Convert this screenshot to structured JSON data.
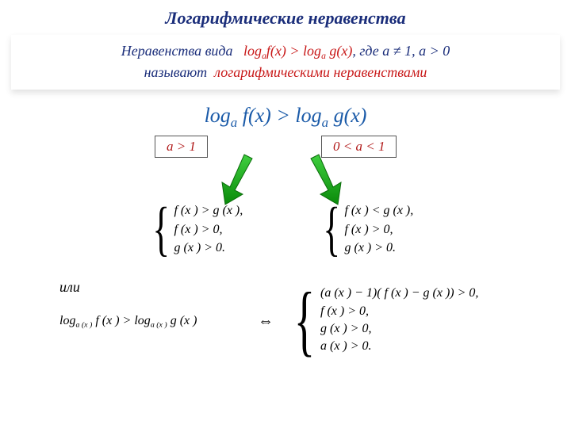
{
  "colors": {
    "title": "#1a2d7a",
    "def_text": "#1a2d7a",
    "red": "#c81818",
    "main_ineq": "#1a5aa8",
    "cond_text": "#b01818",
    "system_text": "#000000",
    "arrow_fill": "#1fa01f",
    "arrow_stroke": "#0a6b0a"
  },
  "title": {
    "text": "Логарифмические неравенства",
    "fontsize": 22
  },
  "definition": {
    "prefix": "Неравенства вида",
    "formula_left": "log",
    "formula_sub": "a",
    "fx": "f(x)",
    "gt": ">",
    "gx": "g(x)",
    "where": ", где a ≠ 1, a > 0",
    "line2": "называют",
    "line2_red": "логарифмическими  неравенствами",
    "fontsize": 18
  },
  "main_inequality": {
    "text_log": "log",
    "sub": "a",
    "fx": "f(x)",
    "gt": ">",
    "gx": "g(x)",
    "fontsize": 26
  },
  "conditions": {
    "left": "a > 1",
    "right": "0 < a < 1",
    "fontsize": 17
  },
  "systems": {
    "fontsize": 16,
    "left": [
      "f (x ) > g (x ),",
      "f (x ) > 0,",
      "g (x ) > 0."
    ],
    "right": [
      "f (x ) < g (x ),",
      "f (x ) > 0,",
      "g (x ) > 0."
    ]
  },
  "or_label": "или",
  "bottom": {
    "fontsize": 16,
    "left_log": "log",
    "left_sub": "a (x )",
    "left_fx": "f (x )",
    "left_gt": ">",
    "left_gx": "g (x )",
    "equiv": "⇔",
    "right_lines": [
      "(a (x ) − 1)( f (x ) − g (x )) > 0,",
      "f (x ) > 0,",
      "g (x ) > 0,",
      "a (x ) > 0."
    ]
  }
}
